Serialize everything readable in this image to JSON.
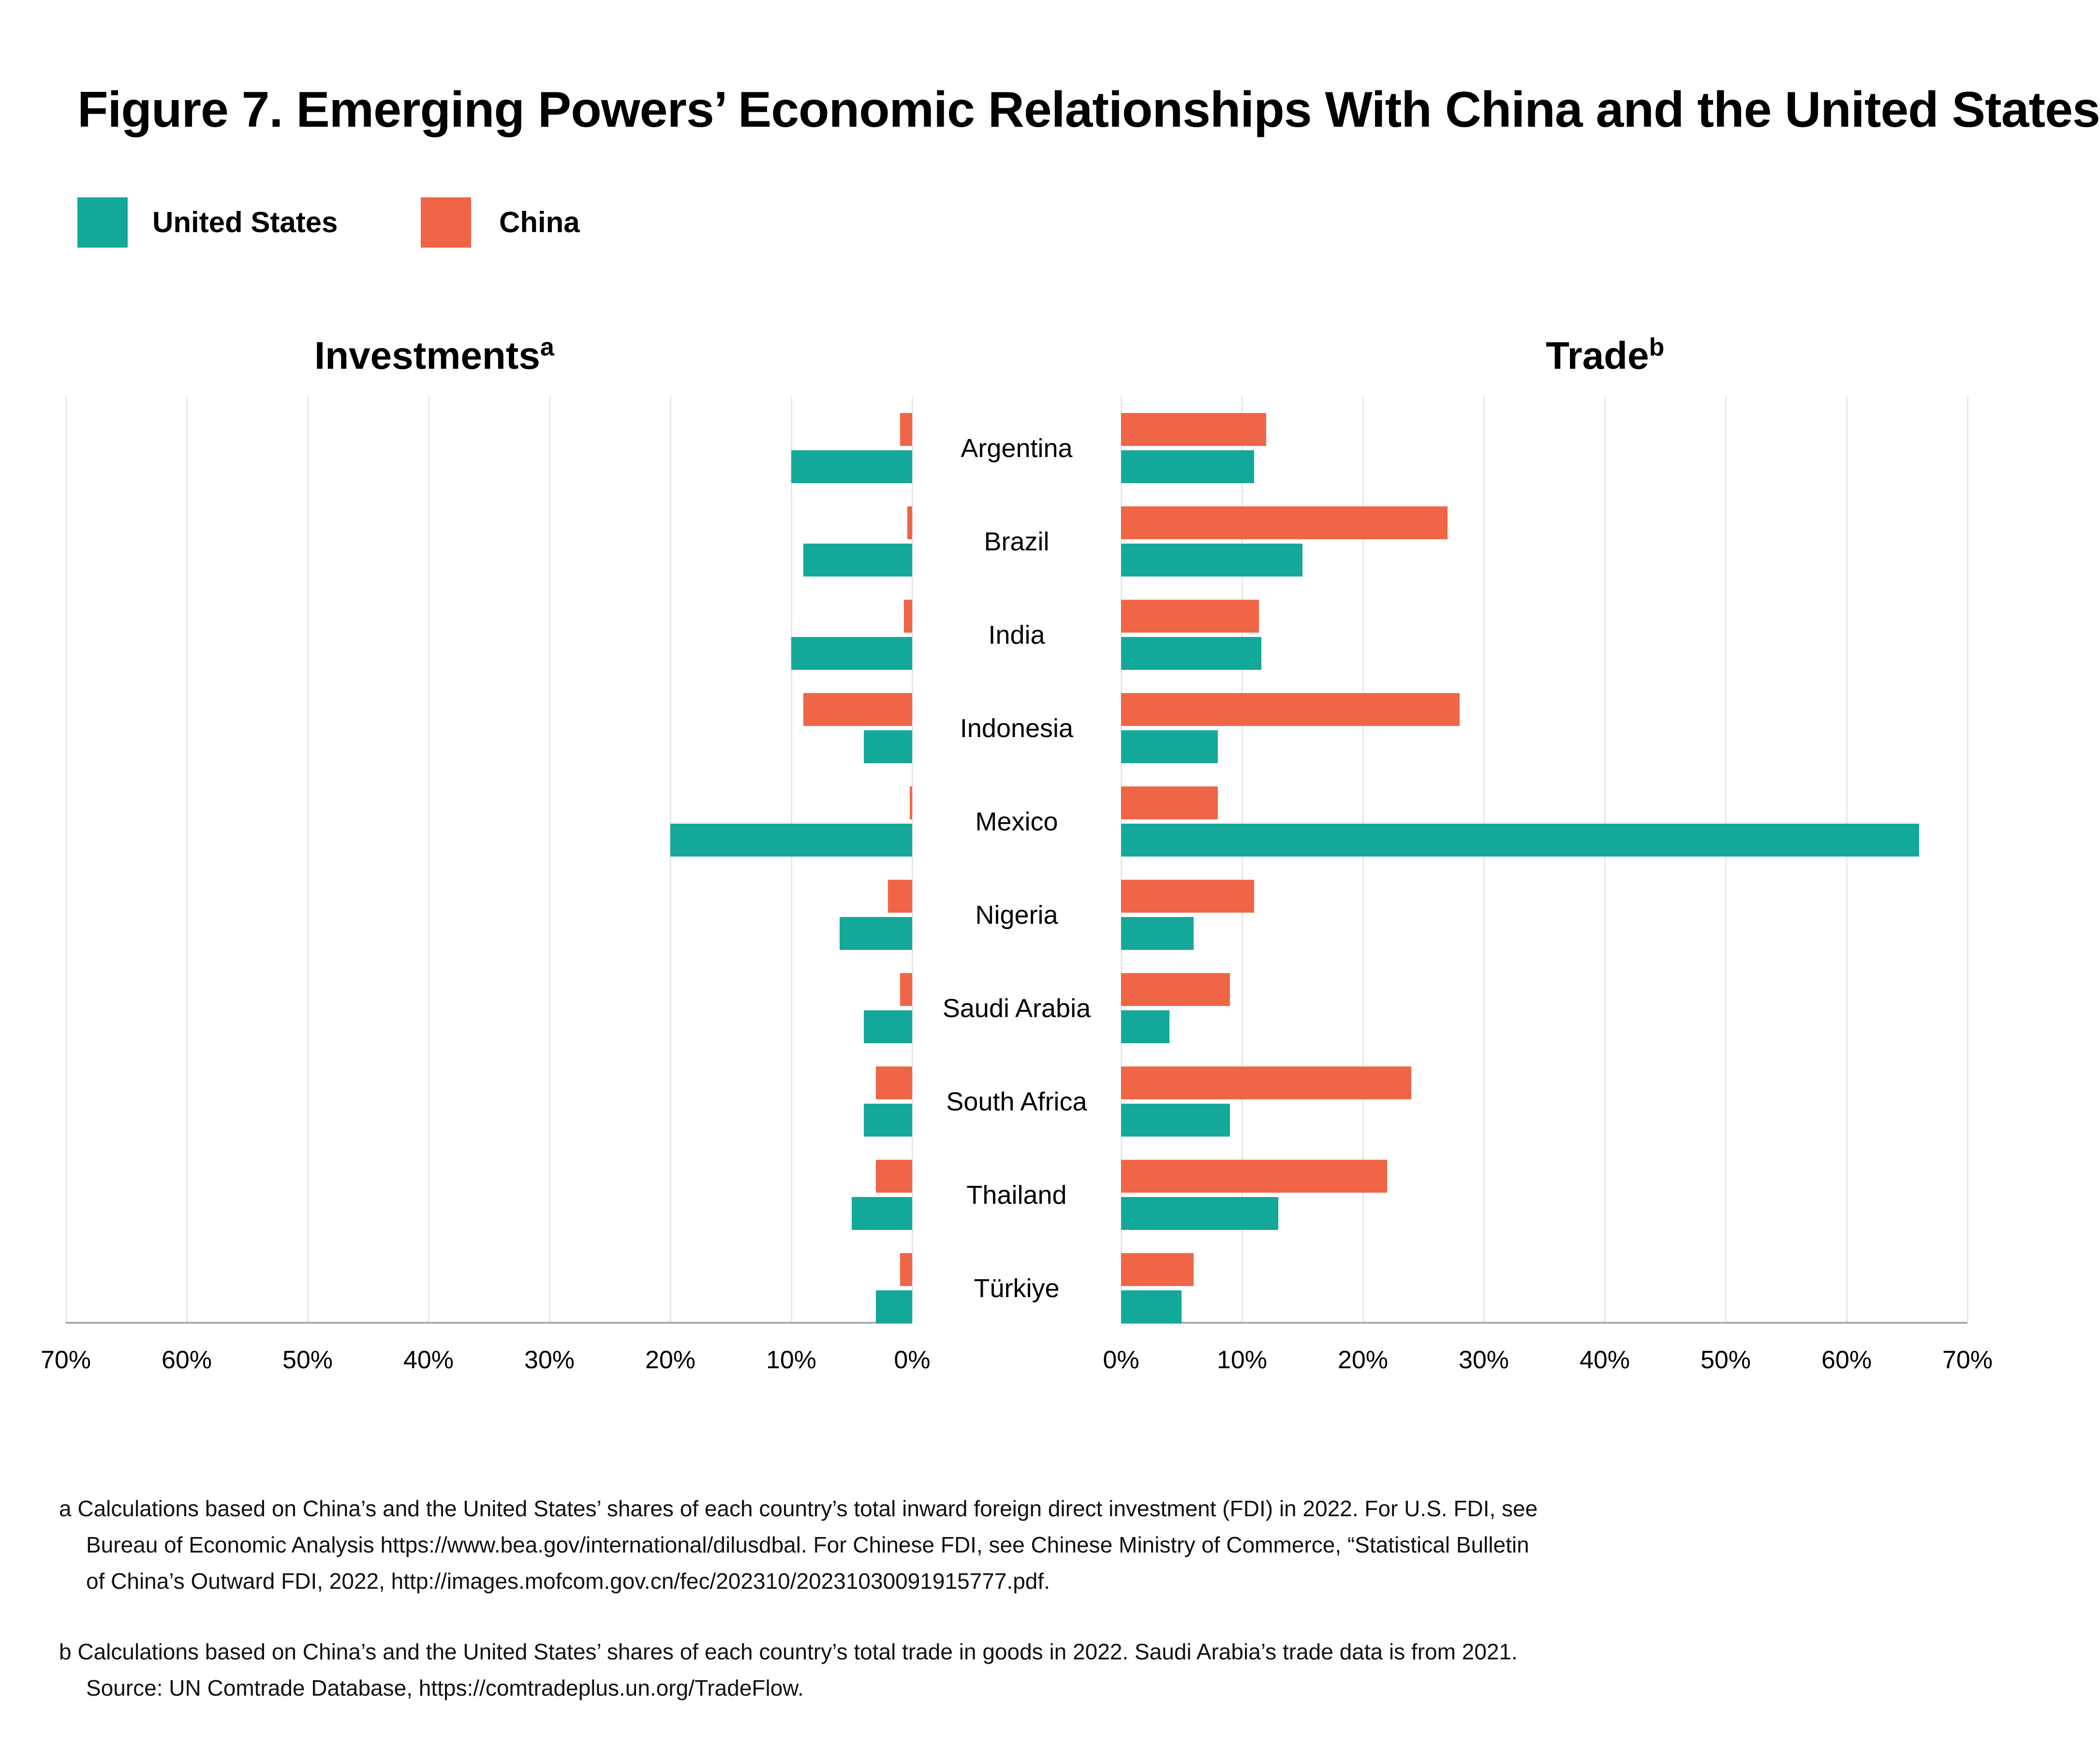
{
  "title": "Figure 7. Emerging Powers’ Economic Relationships With China and the United States",
  "colors": {
    "united_states": "#13A89A",
    "china": "#F06545",
    "gridline": "#E7E7E7",
    "axis": "#ABABAB"
  },
  "legend": {
    "united_states_label": "United States",
    "china_label": "China"
  },
  "panels": {
    "investments": {
      "label": "Investments",
      "sup": "a"
    },
    "trade": {
      "label": "Trade",
      "sup": "b"
    }
  },
  "chart_data": {
    "type": "bar",
    "subtype": "bidirectional-horizontal-bars",
    "unit": "percent",
    "axis_min": 0,
    "axis_max": 70,
    "tick_step": 10,
    "grid": true,
    "row_order_within_pair": [
      "China",
      "United States"
    ],
    "categories": [
      "Argentina",
      "Brazil",
      "India",
      "Indonesia",
      "Mexico",
      "Nigeria",
      "Saudi Arabia",
      "South Africa",
      "Thailand",
      "Türkiye"
    ],
    "left_panel": {
      "title": "Investments",
      "footnote_mark": "a",
      "direction": "left",
      "tick_labels": [
        "70%",
        "60%",
        "50%",
        "40%",
        "30%",
        "20%",
        "10%",
        "0%"
      ],
      "series": [
        {
          "name": "China",
          "color": "#F06545",
          "values": [
            1.0,
            0.4,
            0.7,
            9.0,
            0.2,
            2.0,
            1.0,
            3.0,
            3.0,
            1.0
          ]
        },
        {
          "name": "United States",
          "color": "#13A89A",
          "values": [
            10.0,
            9.0,
            10.0,
            4.0,
            20.0,
            6.0,
            4.0,
            4.0,
            5.0,
            3.0
          ]
        }
      ]
    },
    "right_panel": {
      "title": "Trade",
      "footnote_mark": "b",
      "direction": "right",
      "tick_labels": [
        "0%",
        "10%",
        "20%",
        "30%",
        "40%",
        "50%",
        "60%",
        "70%"
      ],
      "series": [
        {
          "name": "China",
          "color": "#F06545",
          "values": [
            12.0,
            27.0,
            11.4,
            28.0,
            8.0,
            11.0,
            9.0,
            24.0,
            22.0,
            6.0
          ]
        },
        {
          "name": "United States",
          "color": "#13A89A",
          "values": [
            11.0,
            15.0,
            11.6,
            8.0,
            66.0,
            6.0,
            4.0,
            9.0,
            13.0,
            5.0
          ]
        }
      ]
    }
  },
  "footnotes": {
    "a": {
      "mark": "a",
      "lines": [
        "Calculations based on China’s and the United States’ shares of each country’s total inward foreign direct investment (FDI) in 2022. For U.S. FDI, see",
        "Bureau of Economic Analysis https://www.bea.gov/international/dilusdbal. For Chinese FDI, see Chinese Ministry of Commerce, “Statistical Bulletin",
        "of China’s Outward FDI, 2022, http://images.mofcom.gov.cn/fec/202310/20231030091915777.pdf."
      ]
    },
    "b": {
      "mark": "b",
      "lines": [
        "Calculations based on China’s and the United States’ shares of each country’s total trade in goods in 2022. Saudi Arabia’s trade data is from 2021.",
        "Source: UN Comtrade Database, https://comtradeplus.un.org/TradeFlow."
      ]
    }
  }
}
